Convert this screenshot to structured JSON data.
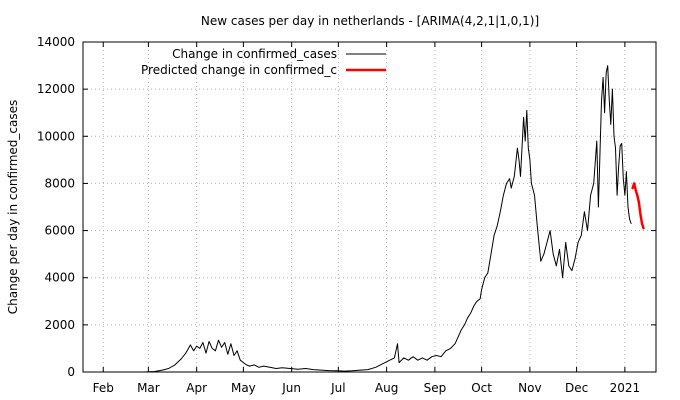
{
  "chart_data": {
    "type": "line",
    "title": "New cases per day in netherlands -  [ARIMA(4,2,1|1,0,1)]",
    "ylabel": "Change per day in confirmed_cases",
    "xlabel": "",
    "ylim": [
      0,
      14000
    ],
    "yticks": [
      0,
      2000,
      4000,
      6000,
      8000,
      10000,
      12000,
      14000
    ],
    "x_range": [
      "2020-01-19",
      "2021-01-21"
    ],
    "xticks": [
      {
        "date": "2020-02-01",
        "label": "Feb"
      },
      {
        "date": "2020-03-01",
        "label": "Mar"
      },
      {
        "date": "2020-04-01",
        "label": "Apr"
      },
      {
        "date": "2020-05-01",
        "label": "May"
      },
      {
        "date": "2020-06-01",
        "label": "Jun"
      },
      {
        "date": "2020-07-01",
        "label": "Jul"
      },
      {
        "date": "2020-08-01",
        "label": "Aug"
      },
      {
        "date": "2020-09-01",
        "label": "Sep"
      },
      {
        "date": "2020-10-01",
        "label": "Oct"
      },
      {
        "date": "2020-11-01",
        "label": "Nov"
      },
      {
        "date": "2020-12-01",
        "label": "Dec"
      },
      {
        "date": "2021-01-01",
        "label": "2021"
      }
    ],
    "grid": true,
    "legend_position": "top-right",
    "series": [
      {
        "name": "Change in confirmed_cases",
        "color": "#000000",
        "points": [
          [
            "2020-02-27",
            0
          ],
          [
            "2020-03-05",
            20
          ],
          [
            "2020-03-10",
            80
          ],
          [
            "2020-03-14",
            150
          ],
          [
            "2020-03-18",
            300
          ],
          [
            "2020-03-22",
            550
          ],
          [
            "2020-03-25",
            800
          ],
          [
            "2020-03-28",
            1150
          ],
          [
            "2020-03-30",
            900
          ],
          [
            "2020-04-01",
            1100
          ],
          [
            "2020-04-03",
            1000
          ],
          [
            "2020-04-05",
            1250
          ],
          [
            "2020-04-07",
            800
          ],
          [
            "2020-04-09",
            1300
          ],
          [
            "2020-04-11",
            1000
          ],
          [
            "2020-04-13",
            900
          ],
          [
            "2020-04-15",
            1350
          ],
          [
            "2020-04-17",
            1050
          ],
          [
            "2020-04-19",
            1250
          ],
          [
            "2020-04-21",
            750
          ],
          [
            "2020-04-23",
            1200
          ],
          [
            "2020-04-25",
            700
          ],
          [
            "2020-04-27",
            900
          ],
          [
            "2020-04-29",
            500
          ],
          [
            "2020-05-01",
            400
          ],
          [
            "2020-05-03",
            300
          ],
          [
            "2020-05-05",
            250
          ],
          [
            "2020-05-08",
            300
          ],
          [
            "2020-05-11",
            200
          ],
          [
            "2020-05-14",
            250
          ],
          [
            "2020-05-18",
            200
          ],
          [
            "2020-05-22",
            150
          ],
          [
            "2020-05-26",
            180
          ],
          [
            "2020-05-31",
            150
          ],
          [
            "2020-06-05",
            120
          ],
          [
            "2020-06-10",
            150
          ],
          [
            "2020-06-15",
            100
          ],
          [
            "2020-06-20",
            80
          ],
          [
            "2020-06-25",
            60
          ],
          [
            "2020-06-30",
            50
          ],
          [
            "2020-07-05",
            40
          ],
          [
            "2020-07-10",
            50
          ],
          [
            "2020-07-15",
            80
          ],
          [
            "2020-07-20",
            100
          ],
          [
            "2020-07-25",
            200
          ],
          [
            "2020-07-28",
            300
          ],
          [
            "2020-07-31",
            400
          ],
          [
            "2020-08-03",
            500
          ],
          [
            "2020-08-06",
            600
          ],
          [
            "2020-08-08",
            1200
          ],
          [
            "2020-08-09",
            400
          ],
          [
            "2020-08-12",
            600
          ],
          [
            "2020-08-15",
            500
          ],
          [
            "2020-08-18",
            650
          ],
          [
            "2020-08-21",
            500
          ],
          [
            "2020-08-24",
            600
          ],
          [
            "2020-08-27",
            500
          ],
          [
            "2020-08-30",
            650
          ],
          [
            "2020-09-02",
            700
          ],
          [
            "2020-09-05",
            650
          ],
          [
            "2020-09-08",
            900
          ],
          [
            "2020-09-11",
            1000
          ],
          [
            "2020-09-14",
            1200
          ],
          [
            "2020-09-16",
            1500
          ],
          [
            "2020-09-18",
            1800
          ],
          [
            "2020-09-20",
            2000
          ],
          [
            "2020-09-22",
            2300
          ],
          [
            "2020-09-24",
            2500
          ],
          [
            "2020-09-26",
            2800
          ],
          [
            "2020-09-28",
            3000
          ],
          [
            "2020-09-30",
            3100
          ],
          [
            "2020-10-01",
            3500
          ],
          [
            "2020-10-03",
            4000
          ],
          [
            "2020-10-05",
            4200
          ],
          [
            "2020-10-07",
            5000
          ],
          [
            "2020-10-09",
            5800
          ],
          [
            "2020-10-11",
            6200
          ],
          [
            "2020-10-13",
            6800
          ],
          [
            "2020-10-15",
            7500
          ],
          [
            "2020-10-17",
            8000
          ],
          [
            "2020-10-19",
            8200
          ],
          [
            "2020-10-20",
            7800
          ],
          [
            "2020-10-22",
            8300
          ],
          [
            "2020-10-24",
            9500
          ],
          [
            "2020-10-25",
            9000
          ],
          [
            "2020-10-26",
            8300
          ],
          [
            "2020-10-28",
            10800
          ],
          [
            "2020-10-29",
            9800
          ],
          [
            "2020-10-30",
            11100
          ],
          [
            "2020-10-31",
            9500
          ],
          [
            "2020-11-01",
            9000
          ],
          [
            "2020-11-02",
            8000
          ],
          [
            "2020-11-04",
            7500
          ],
          [
            "2020-11-06",
            6000
          ],
          [
            "2020-11-08",
            4700
          ],
          [
            "2020-11-10",
            5000
          ],
          [
            "2020-11-12",
            5500
          ],
          [
            "2020-11-14",
            6000
          ],
          [
            "2020-11-16",
            5000
          ],
          [
            "2020-11-18",
            4500
          ],
          [
            "2020-11-20",
            5200
          ],
          [
            "2020-11-22",
            4000
          ],
          [
            "2020-11-24",
            5500
          ],
          [
            "2020-11-26",
            4500
          ],
          [
            "2020-11-28",
            4300
          ],
          [
            "2020-11-30",
            4800
          ],
          [
            "2020-12-02",
            5500
          ],
          [
            "2020-12-04",
            5800
          ],
          [
            "2020-12-06",
            6800
          ],
          [
            "2020-12-08",
            6000
          ],
          [
            "2020-12-10",
            7500
          ],
          [
            "2020-12-12",
            8000
          ],
          [
            "2020-12-14",
            9800
          ],
          [
            "2020-12-15",
            7000
          ],
          [
            "2020-12-17",
            11500
          ],
          [
            "2020-12-18",
            12500
          ],
          [
            "2020-12-19",
            11000
          ],
          [
            "2020-12-20",
            12700
          ],
          [
            "2020-12-21",
            13000
          ],
          [
            "2020-12-22",
            11500
          ],
          [
            "2020-12-23",
            10500
          ],
          [
            "2020-12-24",
            12000
          ],
          [
            "2020-12-25",
            10000
          ],
          [
            "2020-12-26",
            9500
          ],
          [
            "2020-12-27",
            7500
          ],
          [
            "2020-12-28",
            8700
          ],
          [
            "2020-12-29",
            9600
          ],
          [
            "2020-12-30",
            9700
          ],
          [
            "2020-12-31",
            8200
          ],
          [
            "2021-01-01",
            7500
          ],
          [
            "2021-01-02",
            8500
          ],
          [
            "2021-01-03",
            7000
          ],
          [
            "2021-01-04",
            6500
          ],
          [
            "2021-01-05",
            6300
          ]
        ]
      },
      {
        "name": "Predicted change in confirmed_c",
        "color": "#ff0000",
        "points": [
          [
            "2021-01-06",
            7800
          ],
          [
            "2021-01-07",
            8000
          ],
          [
            "2021-01-08",
            7700
          ],
          [
            "2021-01-09",
            7500
          ],
          [
            "2021-01-10",
            7200
          ],
          [
            "2021-01-11",
            6700
          ],
          [
            "2021-01-12",
            6300
          ],
          [
            "2021-01-13",
            6100
          ]
        ]
      }
    ]
  }
}
